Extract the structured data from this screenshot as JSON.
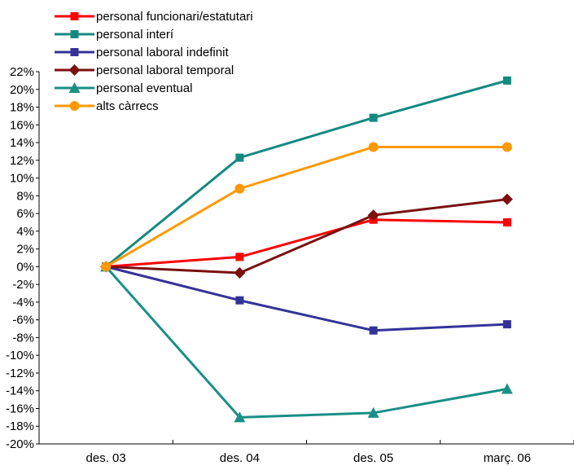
{
  "chart_data": {
    "type": "line",
    "title": "",
    "xlabel": "",
    "ylabel": "",
    "categories": [
      "des. 03",
      "des. 04",
      "des. 05",
      "març. 06"
    ],
    "ylim": [
      -20,
      22
    ],
    "ytick_step": 2,
    "ytick_suffix": "%",
    "grid": false,
    "legend_position": "top-left",
    "series": [
      {
        "name": "personal funcionari/estatutari",
        "color": "#ff0000",
        "marker": "square",
        "values": [
          0.0,
          1.1,
          5.3,
          5.0
        ]
      },
      {
        "name": "personal interí",
        "color": "#138a80",
        "marker": "square",
        "values": [
          0.0,
          12.3,
          16.8,
          21.0
        ]
      },
      {
        "name": "personal laboral indefinit",
        "color": "#333399",
        "marker": "square",
        "values": [
          0.0,
          -3.8,
          -7.2,
          -6.5
        ]
      },
      {
        "name": "personal laboral temporal",
        "color": "#7b1010",
        "marker": "diamond",
        "values": [
          0.0,
          -0.7,
          5.8,
          7.6
        ]
      },
      {
        "name": "personal eventual",
        "color": "#1a8f86",
        "marker": "triangle",
        "values": [
          0.0,
          -17.0,
          -16.5,
          -13.8
        ]
      },
      {
        "name": "alts càrrecs",
        "color": "#ff9900",
        "marker": "circle",
        "values": [
          0.0,
          8.8,
          13.5,
          13.5
        ]
      }
    ]
  }
}
